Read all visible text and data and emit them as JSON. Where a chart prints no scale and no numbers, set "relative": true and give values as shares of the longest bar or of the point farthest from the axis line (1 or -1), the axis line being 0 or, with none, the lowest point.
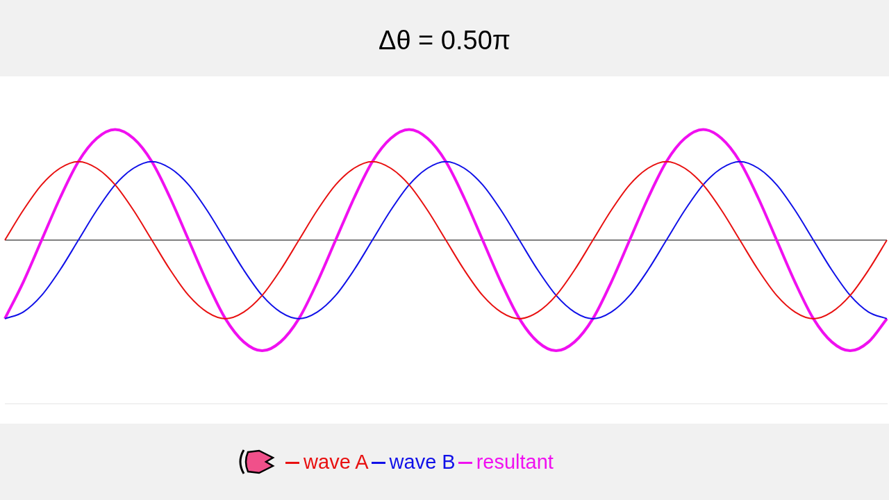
{
  "chart_data": {
    "type": "line",
    "title": "Δθ = 0.50π",
    "relative": true,
    "legend": "bottom",
    "marker": "none",
    "categories": [
      null,
      null,
      null,
      null,
      null,
      null,
      null,
      null,
      null,
      null,
      null,
      null,
      null,
      null,
      null,
      null,
      null,
      null,
      null,
      null,
      null,
      null,
      null,
      null,
      null,
      null,
      null,
      null,
      null,
      null,
      null,
      null,
      null,
      null,
      null,
      null,
      null,
      null,
      null,
      null,
      null,
      null,
      null,
      null,
      null,
      null,
      null,
      null,
      null
    ],
    "series": [
      {
        "name": "wave A",
        "color": "#e81010",
        "values": [
          0,
          0.27,
          0.5,
          0.65,
          0.71,
          0.65,
          0.5,
          0.27,
          0,
          -0.27,
          -0.5,
          -0.65,
          -0.71,
          -0.65,
          -0.5,
          -0.27,
          0,
          0.27,
          0.5,
          0.65,
          0.71,
          0.65,
          0.5,
          0.27,
          0,
          -0.27,
          -0.5,
          -0.65,
          -0.71,
          -0.65,
          -0.5,
          -0.27,
          0,
          0.27,
          0.5,
          0.65,
          0.71,
          0.65,
          0.5,
          0.27,
          0,
          -0.27,
          -0.5,
          -0.65,
          -0.71,
          -0.65,
          -0.5,
          -0.27,
          0
        ]
      },
      {
        "name": "wave B",
        "color": "#1010e8",
        "values": [
          -0.71,
          -0.65,
          -0.5,
          -0.27,
          0,
          0.27,
          0.5,
          0.65,
          0.71,
          0.65,
          0.5,
          0.27,
          0,
          -0.27,
          -0.5,
          -0.65,
          -0.71,
          -0.65,
          -0.5,
          -0.27,
          0,
          0.27,
          0.5,
          0.65,
          0.71,
          0.65,
          0.5,
          0.27,
          0,
          -0.27,
          -0.5,
          -0.65,
          -0.71,
          -0.65,
          -0.5,
          -0.27,
          0,
          0.27,
          0.5,
          0.65,
          0.71,
          0.65,
          0.5,
          0.27,
          0,
          -0.27,
          -0.5,
          -0.65,
          -0.71
        ]
      },
      {
        "name": "resultant",
        "color": "#f010f0",
        "values": [
          -0.71,
          -0.38,
          0,
          0.38,
          0.71,
          0.92,
          1,
          0.92,
          0.71,
          0.38,
          0,
          -0.38,
          -0.71,
          -0.92,
          -1,
          -0.92,
          -0.71,
          -0.38,
          0,
          0.38,
          0.71,
          0.92,
          1,
          0.92,
          0.71,
          0.38,
          0,
          -0.38,
          -0.71,
          -0.92,
          -1,
          -0.92,
          -0.71,
          -0.38,
          0,
          0.38,
          0.71,
          0.92,
          1,
          0.92,
          0.71,
          0.38,
          0,
          -0.38,
          -0.71,
          -0.92,
          -1,
          -0.92,
          -0.71
        ]
      }
    ]
  }
}
